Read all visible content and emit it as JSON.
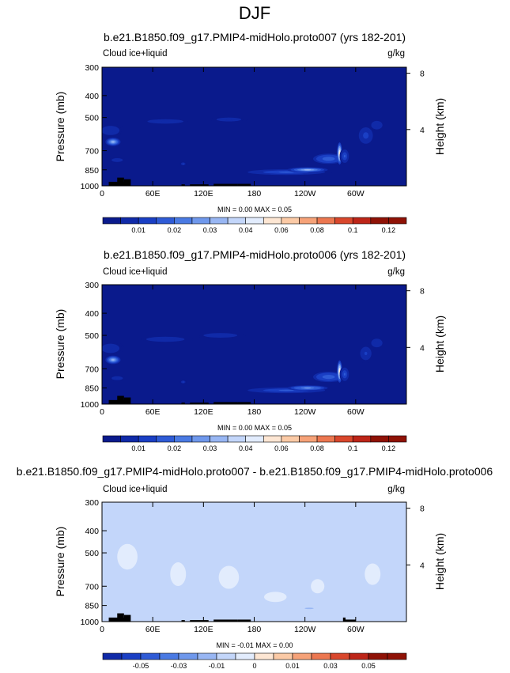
{
  "figure": {
    "title": "DJF"
  },
  "palette": {
    "colors": [
      "#0a1a8c",
      "#102aa8",
      "#1a3fc4",
      "#2f5bd6",
      "#4a7ae3",
      "#6f98ec",
      "#98b6f3",
      "#c3d6fa",
      "#e2ecfd",
      "#fde6d3",
      "#fbcaa6",
      "#f6a278",
      "#ec7750",
      "#d9472c",
      "#bd2518",
      "#8f1206"
    ],
    "land_color": "#000000"
  },
  "chart_data": [
    {
      "type": "heatmap",
      "title": "b.e21.B1850.f09_g17.PMIP4-midHolo.proto007 (yrs 182-201)",
      "variable_label": "Cloud ice+liquid",
      "units_label": "g/kg",
      "ylabel": "Pressure (mb)",
      "ylabel_right": "Height (km)",
      "x_ticks": [
        "0",
        "60E",
        "120E",
        "180",
        "120W",
        "60W"
      ],
      "x_tick_values": [
        0,
        60,
        120,
        180,
        240,
        300
      ],
      "xlim": [
        0,
        360
      ],
      "y_ticks": [
        "300",
        "400",
        "500",
        "700",
        "850",
        "1000"
      ],
      "y_tick_values": [
        300,
        400,
        500,
        700,
        850,
        1000
      ],
      "ylim": [
        1000,
        300
      ],
      "y_ticks_right": [
        "8",
        "4"
      ],
      "y_tick_right_values": [
        8,
        4
      ],
      "stats": "MIN =   0.00  MAX =   0.05",
      "colorbar_labels": [
        "0.01",
        "0.02",
        "0.03",
        "0.04",
        "0.06",
        "0.08",
        "0.1",
        "0.12"
      ],
      "colorbar_boundaries": [
        0.005,
        0.01,
        0.015,
        0.02,
        0.025,
        0.03,
        0.035,
        0.04,
        0.05,
        0.06,
        0.07,
        0.08,
        0.09,
        0.1,
        0.11,
        0.12
      ],
      "features": [
        {
          "name": "feature-1",
          "lon": 13,
          "p": 640,
          "lon_w": 9,
          "p_w": 55,
          "value": 0.03
        },
        {
          "name": "feature-2",
          "lon": 10,
          "p": 570,
          "lon_w": 16,
          "p_w": 80,
          "value": 0.009
        },
        {
          "name": "feature-3",
          "lon": 18,
          "p": 770,
          "lon_w": 10,
          "p_w": 45,
          "value": 0.008
        },
        {
          "name": "feature-4",
          "lon": 75,
          "p": 520,
          "lon_w": 32,
          "p_w": 35,
          "value": 0.008
        },
        {
          "name": "feature-5",
          "lon": 150,
          "p": 510,
          "lon_w": 22,
          "p_w": 30,
          "value": 0.008
        },
        {
          "name": "feature-6",
          "lon": 96,
          "p": 800,
          "lon_w": 4,
          "p_w": 35,
          "value": 0.011
        },
        {
          "name": "feature-7",
          "lon": 218,
          "p": 870,
          "lon_w": 55,
          "p_w": 60,
          "value": 0.016
        },
        {
          "name": "feature-8",
          "lon": 243,
          "p": 850,
          "lon_w": 24,
          "p_w": 45,
          "value": 0.03
        },
        {
          "name": "feature-9",
          "lon": 268,
          "p": 760,
          "lon_w": 22,
          "p_w": 95,
          "value": 0.018
        },
        {
          "name": "feature-10",
          "lon": 281,
          "p": 720,
          "lon_w": 3,
          "p_w": 160,
          "value": 0.05
        },
        {
          "name": "feature-11",
          "lon": 287,
          "p": 740,
          "lon_w": 6,
          "p_w": 120,
          "value": 0.015
        },
        {
          "name": "feature-12",
          "lon": 312,
          "p": 600,
          "lon_w": 10,
          "p_w": 120,
          "value": 0.012
        },
        {
          "name": "feature-13",
          "lon": 325,
          "p": 540,
          "lon_w": 10,
          "p_w": 70,
          "value": 0.009
        }
      ],
      "orography": [
        {
          "lon_start": 8,
          "lon_end": 28,
          "p_top": 960
        },
        {
          "lon_start": 18,
          "lon_end": 26,
          "p_top": 920
        },
        {
          "lon_start": 26,
          "lon_end": 34,
          "p_top": 935
        },
        {
          "lon_start": 94,
          "lon_end": 98,
          "p_top": 985
        },
        {
          "lon_start": 104,
          "lon_end": 126,
          "p_top": 985
        },
        {
          "lon_start": 132,
          "lon_end": 160,
          "p_top": 980
        },
        {
          "lon_start": 160,
          "lon_end": 176,
          "p_top": 980
        }
      ]
    },
    {
      "type": "heatmap",
      "title": "b.e21.B1850.f09_g17.PMIP4-midHolo.proto006 (yrs 182-201)",
      "variable_label": "Cloud ice+liquid",
      "units_label": "g/kg",
      "ylabel": "Pressure (mb)",
      "ylabel_right": "Height (km)",
      "x_ticks": [
        "0",
        "60E",
        "120E",
        "180",
        "120W",
        "60W"
      ],
      "x_tick_values": [
        0,
        60,
        120,
        180,
        240,
        300
      ],
      "xlim": [
        0,
        360
      ],
      "y_ticks": [
        "300",
        "400",
        "500",
        "700",
        "850",
        "1000"
      ],
      "y_tick_values": [
        300,
        400,
        500,
        700,
        850,
        1000
      ],
      "ylim": [
        1000,
        300
      ],
      "y_ticks_right": [
        "8",
        "4"
      ],
      "y_tick_right_values": [
        8,
        4
      ],
      "stats": "MIN =   0.00  MAX =   0.05",
      "colorbar_labels": [
        "0.01",
        "0.02",
        "0.03",
        "0.04",
        "0.06",
        "0.08",
        "0.1",
        "0.12"
      ],
      "colorbar_boundaries": [
        0.005,
        0.01,
        0.015,
        0.02,
        0.025,
        0.03,
        0.035,
        0.04,
        0.05,
        0.06,
        0.07,
        0.08,
        0.09,
        0.1,
        0.11,
        0.12
      ],
      "features": [
        {
          "name": "feature-1",
          "lon": 13,
          "p": 640,
          "lon_w": 9,
          "p_w": 55,
          "value": 0.03
        },
        {
          "name": "feature-2",
          "lon": 10,
          "p": 570,
          "lon_w": 16,
          "p_w": 80,
          "value": 0.009
        },
        {
          "name": "feature-3",
          "lon": 18,
          "p": 770,
          "lon_w": 10,
          "p_w": 45,
          "value": 0.008
        },
        {
          "name": "feature-4",
          "lon": 75,
          "p": 520,
          "lon_w": 34,
          "p_w": 40,
          "value": 0.008
        },
        {
          "name": "feature-5",
          "lon": 140,
          "p": 500,
          "lon_w": 30,
          "p_w": 35,
          "value": 0.008
        },
        {
          "name": "feature-6",
          "lon": 96,
          "p": 800,
          "lon_w": 4,
          "p_w": 35,
          "value": 0.011
        },
        {
          "name": "feature-7",
          "lon": 218,
          "p": 870,
          "lon_w": 55,
          "p_w": 60,
          "value": 0.016
        },
        {
          "name": "feature-8",
          "lon": 243,
          "p": 850,
          "lon_w": 24,
          "p_w": 45,
          "value": 0.028
        },
        {
          "name": "feature-9",
          "lon": 268,
          "p": 760,
          "lon_w": 22,
          "p_w": 95,
          "value": 0.018
        },
        {
          "name": "feature-10",
          "lon": 281,
          "p": 720,
          "lon_w": 3,
          "p_w": 160,
          "value": 0.05
        },
        {
          "name": "feature-11",
          "lon": 287,
          "p": 740,
          "lon_w": 6,
          "p_w": 120,
          "value": 0.015
        },
        {
          "name": "feature-12",
          "lon": 312,
          "p": 600,
          "lon_w": 10,
          "p_w": 120,
          "value": 0.011
        },
        {
          "name": "feature-13",
          "lon": 325,
          "p": 540,
          "lon_w": 10,
          "p_w": 70,
          "value": 0.008
        }
      ],
      "orography": [
        {
          "lon_start": 8,
          "lon_end": 28,
          "p_top": 960
        },
        {
          "lon_start": 18,
          "lon_end": 26,
          "p_top": 920
        },
        {
          "lon_start": 26,
          "lon_end": 34,
          "p_top": 935
        },
        {
          "lon_start": 94,
          "lon_end": 98,
          "p_top": 985
        },
        {
          "lon_start": 104,
          "lon_end": 126,
          "p_top": 985
        },
        {
          "lon_start": 132,
          "lon_end": 160,
          "p_top": 980
        },
        {
          "lon_start": 160,
          "lon_end": 176,
          "p_top": 980
        }
      ]
    },
    {
      "type": "heatmap",
      "title": "b.e21.B1850.f09_g17.PMIP4-midHolo.proto007 - b.e21.B1850.f09_g17.PMIP4-midHolo.proto006",
      "variable_label": "Cloud ice+liquid",
      "units_label": "g/kg",
      "ylabel": "Pressure (mb)",
      "ylabel_right": "Height (km)",
      "x_ticks": [
        "0",
        "60E",
        "120E",
        "180",
        "120W",
        "60W"
      ],
      "x_tick_values": [
        0,
        60,
        120,
        180,
        240,
        300
      ],
      "xlim": [
        0,
        360
      ],
      "y_ticks": [
        "300",
        "400",
        "500",
        "700",
        "850",
        "1000"
      ],
      "y_tick_values": [
        300,
        400,
        500,
        700,
        850,
        1000
      ],
      "ylim": [
        1000,
        300
      ],
      "y_ticks_right": [
        "8",
        "4"
      ],
      "y_tick_right_values": [
        8,
        4
      ],
      "stats": "MIN =  -0.01  MAX =   0.00",
      "colorbar_labels": [
        "-0.05",
        "-0.03",
        "-0.01",
        "0",
        "0.01",
        "0.03",
        "0.05"
      ],
      "colorbar_boundaries": [
        -0.06,
        -0.05,
        -0.04,
        -0.03,
        -0.02,
        -0.01,
        -0.005,
        0,
        0.005,
        0.01,
        0.02,
        0.03,
        0.04,
        0.05,
        0.06
      ],
      "features": [
        {
          "name": "feature-1",
          "lon": 30,
          "p": 520,
          "lon_w": 18,
          "p_w": 200,
          "value": 0.002
        },
        {
          "name": "feature-2",
          "lon": 90,
          "p": 620,
          "lon_w": 14,
          "p_w": 220,
          "value": 0.002
        },
        {
          "name": "feature-3",
          "lon": 150,
          "p": 640,
          "lon_w": 18,
          "p_w": 220,
          "value": 0.002
        },
        {
          "name": "feature-4",
          "lon": 205,
          "p": 780,
          "lon_w": 20,
          "p_w": 120,
          "value": 0.002
        },
        {
          "name": "feature-5",
          "lon": 255,
          "p": 700,
          "lon_w": 12,
          "p_w": 150,
          "value": 0.002
        },
        {
          "name": "feature-6",
          "lon": 320,
          "p": 620,
          "lon_w": 14,
          "p_w": 200,
          "value": 0.002
        },
        {
          "name": "feature-7",
          "lon": 245,
          "p": 875,
          "lon_w": 8,
          "p_w": 18,
          "value": -0.008
        }
      ],
      "orography": [
        {
          "lon_start": 8,
          "lon_end": 28,
          "p_top": 960
        },
        {
          "lon_start": 18,
          "lon_end": 26,
          "p_top": 920
        },
        {
          "lon_start": 26,
          "lon_end": 34,
          "p_top": 935
        },
        {
          "lon_start": 94,
          "lon_end": 98,
          "p_top": 985
        },
        {
          "lon_start": 104,
          "lon_end": 126,
          "p_top": 985
        },
        {
          "lon_start": 132,
          "lon_end": 160,
          "p_top": 980
        },
        {
          "lon_start": 160,
          "lon_end": 176,
          "p_top": 980
        },
        {
          "lon_start": 285,
          "lon_end": 288,
          "p_top": 960
        },
        {
          "lon_start": 288,
          "lon_end": 300,
          "p_top": 980
        }
      ]
    }
  ]
}
